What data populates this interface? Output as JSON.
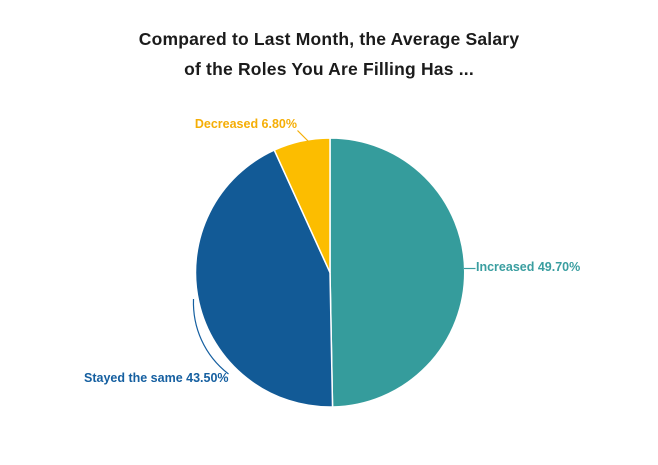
{
  "chart_data": {
    "type": "pie",
    "title": "Compared to Last Month, the Average Salary of the Roles You Are Filling Has ...",
    "title_lines": [
      "Compared to Last Month, the Average Salary",
      "of the Roles You Are Filling Has ..."
    ],
    "title_color": "#1b1b1b",
    "background_color": "#ffffff",
    "unit": "%",
    "start_angle_deg": 0,
    "direction": "clockwise",
    "legend_position": "none",
    "slice_border_color": "#ffffff",
    "slices": [
      {
        "key": "increased",
        "label": "Increased",
        "value": 49.7,
        "display": "Increased 49.70%",
        "color": "#359C9C",
        "label_color": "#3A9EA0"
      },
      {
        "key": "stayed-the-same",
        "label": "Stayed the same",
        "value": 43.5,
        "display": "Stayed the same 43.50%",
        "color": "#125A96",
        "label_color": "#155FA0"
      },
      {
        "key": "decreased",
        "label": "Decreased",
        "value": 6.8,
        "display": "Decreased 6.80%",
        "color": "#FCBD00",
        "label_color": "#F5AE06"
      }
    ]
  }
}
